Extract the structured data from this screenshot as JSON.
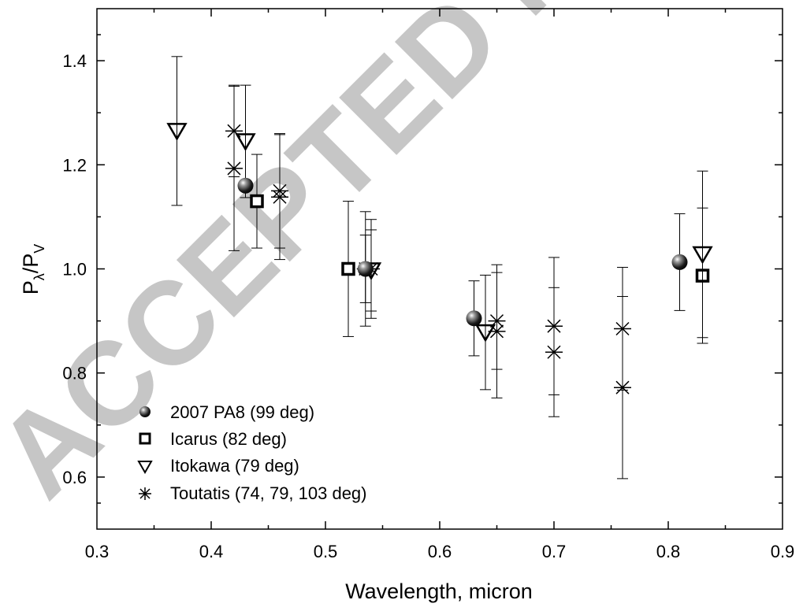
{
  "watermark": "ACCEPTED MANUSCRIPT",
  "chart_data": {
    "type": "scatter",
    "xlabel": "Wavelength, micron",
    "ylabel": "P",
    "ylabel_sub1": "λ",
    "ylabel_mid": "/P",
    "ylabel_sub2": "V",
    "xlim": [
      0.3,
      0.9
    ],
    "ylim": [
      0.5,
      1.5
    ],
    "xticks": [
      "0.3",
      "0.4",
      "0.5",
      "0.6",
      "0.7",
      "0.8",
      "0.9"
    ],
    "yticks": [
      "0.6",
      "0.8",
      "1.0",
      "1.2",
      "1.4"
    ],
    "grid": false,
    "legend_position": "bottom-left",
    "series": [
      {
        "name": "2007 PA8 (99 deg)",
        "marker": "shaded-sphere",
        "points": [
          {
            "x": 0.43,
            "y": 1.16,
            "err": 0.0
          },
          {
            "x": 0.535,
            "y": 1.0,
            "err": 0.065
          },
          {
            "x": 0.63,
            "y": 0.905,
            "err": 0.072
          },
          {
            "x": 0.81,
            "y": 1.013,
            "err": 0.093
          }
        ]
      },
      {
        "name": "Icarus (82 deg)",
        "marker": "open-square",
        "points": [
          {
            "x": 0.44,
            "y": 1.13,
            "err": 0.09
          },
          {
            "x": 0.52,
            "y": 1.0,
            "err": 0.13
          },
          {
            "x": 0.83,
            "y": 0.987,
            "err": 0.13
          }
        ]
      },
      {
        "name": "Itokawa (79 deg)",
        "marker": "open-triangle-down",
        "points": [
          {
            "x": 0.37,
            "y": 1.265,
            "err": 0.143
          },
          {
            "x": 0.43,
            "y": 1.245,
            "err": 0.108
          },
          {
            "x": 0.54,
            "y": 0.997,
            "err": 0.078
          },
          {
            "x": 0.64,
            "y": 0.878,
            "err": 0.11
          },
          {
            "x": 0.83,
            "y": 1.028,
            "err": 0.16
          }
        ]
      },
      {
        "name": "Toutatis (74, 79, 103 deg)",
        "marker": "asterisk",
        "points": [
          {
            "x": 0.42,
            "y": 1.265,
            "err": 0.088
          },
          {
            "x": 0.42,
            "y": 1.193,
            "err": 0.158
          },
          {
            "x": 0.46,
            "y": 1.15,
            "err": 0.11
          },
          {
            "x": 0.46,
            "y": 1.138,
            "err": 0.12
          },
          {
            "x": 0.535,
            "y": 1.0,
            "err": 0.11
          },
          {
            "x": 0.54,
            "y": 1.0,
            "err": 0.095
          },
          {
            "x": 0.65,
            "y": 0.9,
            "err": 0.093
          },
          {
            "x": 0.65,
            "y": 0.88,
            "err": 0.128
          },
          {
            "x": 0.7,
            "y": 0.89,
            "err": 0.132
          },
          {
            "x": 0.7,
            "y": 0.84,
            "err": 0.124
          },
          {
            "x": 0.76,
            "y": 0.885,
            "err": 0.118
          },
          {
            "x": 0.76,
            "y": 0.772,
            "err": 0.175
          }
        ]
      }
    ]
  }
}
